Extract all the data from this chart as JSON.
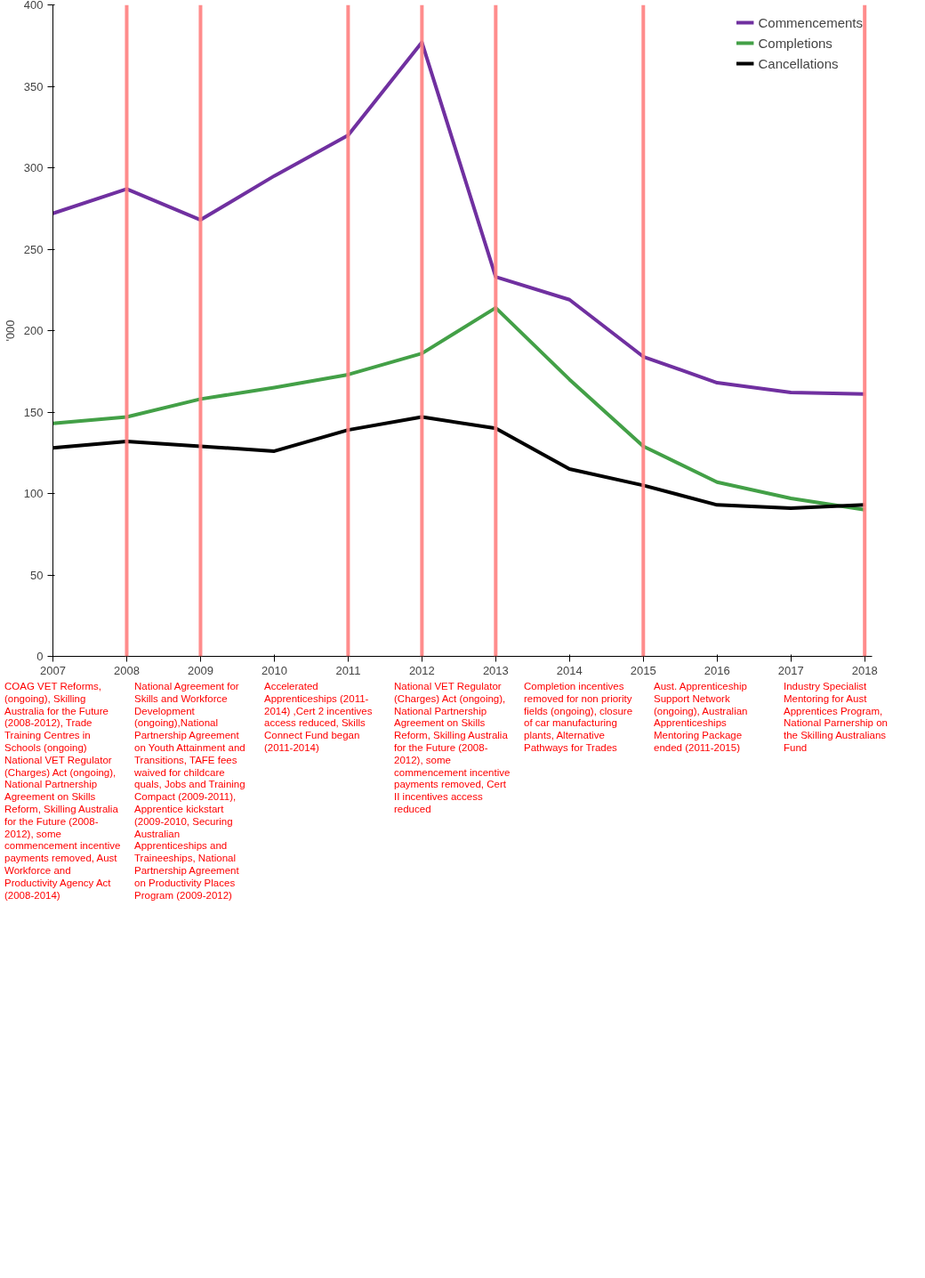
{
  "chart_data": {
    "type": "line",
    "ylabel": "'000",
    "x": [
      2007,
      2008,
      2009,
      2010,
      2011,
      2012,
      2013,
      2014,
      2015,
      2016,
      2017,
      2018
    ],
    "xlim": [
      2007,
      2018.1
    ],
    "xticks": [
      2007,
      2008,
      2009,
      2010,
      2011,
      2012,
      2013,
      2014,
      2015,
      2016,
      2017,
      2018
    ],
    "ylim": [
      0,
      400
    ],
    "yticks": [
      0,
      50,
      100,
      150,
      200,
      250,
      300,
      350,
      400
    ],
    "grid": false,
    "legend": "top right",
    "marker": "none",
    "line_style": "solid",
    "series": [
      {
        "name": "Commencements",
        "color": "#7030a0",
        "values": [
          272,
          287,
          268,
          295,
          320,
          377,
          233,
          219,
          184,
          168,
          162,
          161
        ]
      },
      {
        "name": "Completions",
        "color": "#43a047",
        "values": [
          143,
          147,
          158,
          165,
          173,
          186,
          214,
          170,
          129,
          107,
          97,
          90
        ]
      },
      {
        "name": "Cancellations",
        "color": "#000000",
        "values": [
          128,
          132,
          129,
          126,
          139,
          147,
          140,
          115,
          105,
          93,
          91,
          93
        ]
      }
    ],
    "ref_lines": [
      {
        "axis": "x",
        "value": 2008,
        "color": "#ff7f7f"
      },
      {
        "axis": "x",
        "value": 2009,
        "color": "#ff7f7f"
      },
      {
        "axis": "x",
        "value": 2011,
        "color": "#ff7f7f"
      },
      {
        "axis": "x",
        "value": 2012,
        "color": "#ff7f7f"
      },
      {
        "axis": "x",
        "value": 2013,
        "color": "#ff7f7f"
      },
      {
        "axis": "x",
        "value": 2015,
        "color": "#ff7f7f"
      },
      {
        "axis": "x",
        "value": 2018,
        "color": "#ff7f7f"
      }
    ],
    "annotations": [
      "COAG VET Reforms, (ongoing), Skilling Australia for the Future (2008-2012), Trade Training Centres in Schools (ongoing) National VET Regulator (Charges) Act (ongoing), National Partnership Agreement on Skills Reform, Skilling Australia for the Future (2008-2012), some commencement incentive payments removed, Aust Workforce and Productivity Agency Act (2008-2014)",
      "National Agreement for Skills and Workforce Development (ongoing),National Partnership Agreement on Youth Attainment and Transitions, TAFE fees waived for childcare quals, Jobs and Training Compact (2009-2011), Apprentice kickstart (2009-2010, Securing Australian Apprenticeships and Traineeships, National Partnership Agreement on Productivity Places Program (2009-2012)",
      "Accelerated Apprenticeships (2011-2014) ,Cert 2 incentives access reduced, Skills Connect Fund began (2011-2014)",
      "National VET Regulator (Charges) Act (ongoing), National Partnership Agreement on Skills Reform, Skilling Australia for the Future (2008-2012), some commencement incentive payments removed, Cert II incentives access reduced",
      "Completion incentives removed for non priority fields (ongoing), closure of car manufacturing plants, Alternative Pathways for Trades",
      "Aust. Apprenticeship Support Network (ongoing), Australian Apprenticeships Mentoring Package ended (2011-2015)",
      "Industry Specialist Mentoring for Aust Apprentices Program, National Parnership on the Skilling Australians Fund"
    ]
  }
}
